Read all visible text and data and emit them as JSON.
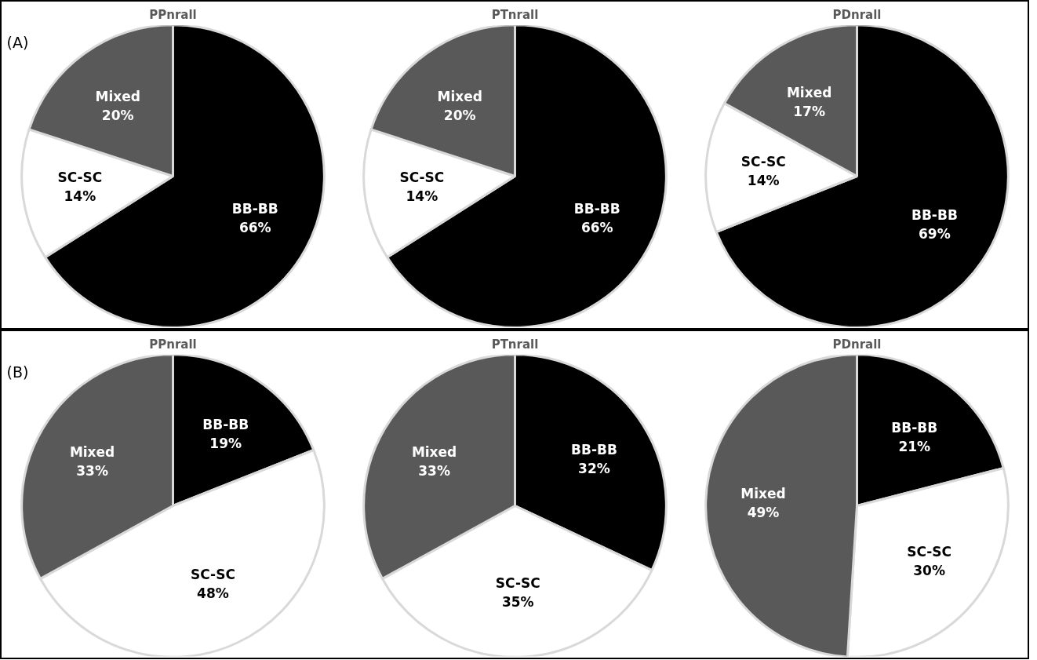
{
  "chart_data": [
    {
      "type": "pie",
      "title": "PPnrall",
      "annotations": [
        "(A)"
      ],
      "categories": [
        "BB-BB",
        "SC-SC",
        "Mixed"
      ],
      "values": [
        66,
        14,
        20
      ],
      "value_labels": [
        "66%",
        "14%",
        "20%"
      ],
      "colors": [
        "#000000",
        "#ffffff",
        "#595959"
      ]
    },
    {
      "type": "pie",
      "title": "PTnrall",
      "categories": [
        "BB-BB",
        "SC-SC",
        "Mixed"
      ],
      "values": [
        66,
        14,
        20
      ],
      "value_labels": [
        "66%",
        "14%",
        "20%"
      ],
      "colors": [
        "#000000",
        "#ffffff",
        "#595959"
      ]
    },
    {
      "type": "pie",
      "title": "PDnrall",
      "categories": [
        "BB-BB",
        "SC-SC",
        "Mixed"
      ],
      "values": [
        69,
        14,
        17
      ],
      "value_labels": [
        "69%",
        "14%",
        "17%"
      ],
      "colors": [
        "#000000",
        "#ffffff",
        "#595959"
      ]
    },
    {
      "type": "pie",
      "title": "PPnrall",
      "annotations": [
        "(B)"
      ],
      "categories": [
        "BB-BB",
        "SC-SC",
        "Mixed"
      ],
      "values": [
        19,
        48,
        33
      ],
      "value_labels": [
        "19%",
        "48%",
        "33%"
      ],
      "colors": [
        "#000000",
        "#ffffff",
        "#595959"
      ]
    },
    {
      "type": "pie",
      "title": "PTnrall",
      "categories": [
        "BB-BB",
        "SC-SC",
        "Mixed"
      ],
      "values": [
        32,
        35,
        33
      ],
      "value_labels": [
        "32%",
        "35%",
        "33%"
      ],
      "colors": [
        "#000000",
        "#ffffff",
        "#595959"
      ]
    },
    {
      "type": "pie",
      "title": "PDnrall",
      "categories": [
        "BB-BB",
        "SC-SC",
        "Mixed"
      ],
      "values": [
        21,
        30,
        49
      ],
      "value_labels": [
        "21%",
        "30%",
        "49%"
      ],
      "colors": [
        "#000000",
        "#ffffff",
        "#595959"
      ]
    }
  ]
}
